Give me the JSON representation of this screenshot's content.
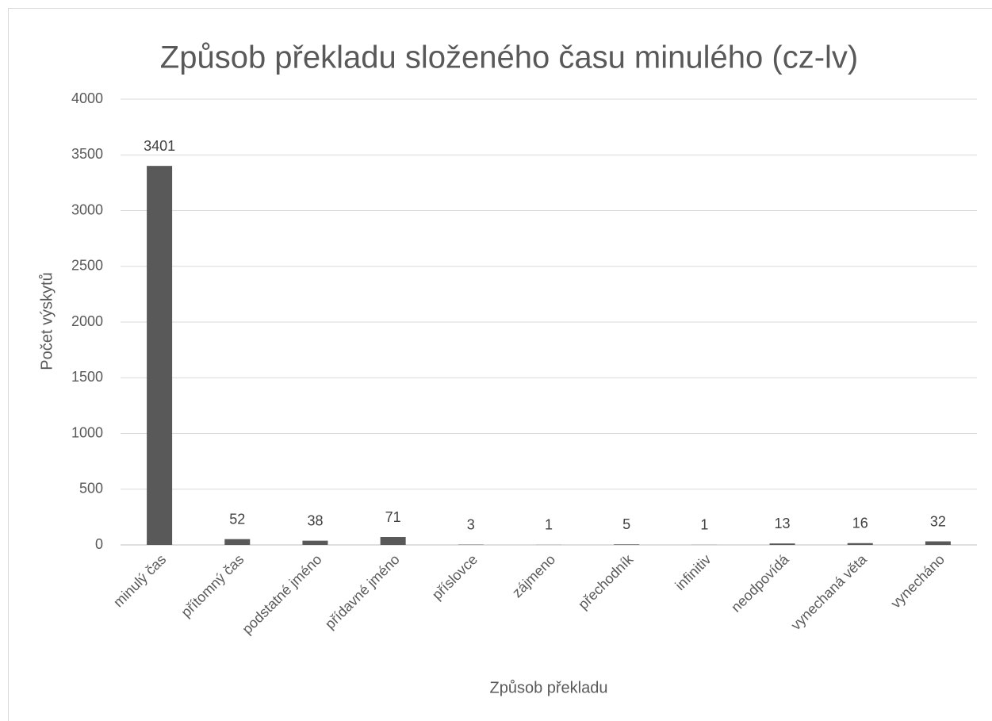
{
  "chart_data": {
    "type": "bar",
    "title": "Způsob překladu složeného času minulého (cz-lv)",
    "x_label": "Způsob překladu",
    "y_label": "Počet výskytů",
    "categories": [
      "minulý čas",
      "přítomný čas",
      "podstatné jméno",
      "přídavné jméno",
      "příslovce",
      "zájmeno",
      "přechodník",
      "infinitiv",
      "neodpovídá",
      "vynechaná věta",
      "vynecháno"
    ],
    "values": [
      3401,
      52,
      38,
      71,
      3,
      1,
      5,
      1,
      13,
      16,
      32
    ],
    "color": "#595959",
    "ylim": [
      0,
      4000
    ],
    "yticks": [
      0,
      500,
      1000,
      1500,
      2000,
      2500,
      3000,
      3500,
      4000
    ],
    "grid": true
  }
}
